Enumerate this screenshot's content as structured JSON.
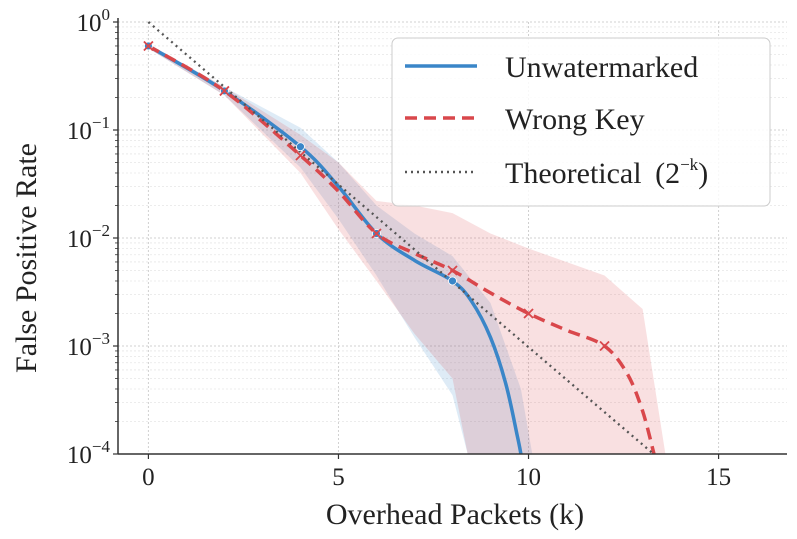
{
  "chart_data": {
    "type": "line",
    "yscale": "log",
    "xlabel": "Overhead Packets (k)",
    "ylabel": "False Positive Rate",
    "xlim": [
      -0.8,
      16.8
    ],
    "ylim": [
      0.0001,
      1
    ],
    "x_ticks": [
      0,
      5,
      10,
      15
    ],
    "y_ticks": [
      {
        "value": 1,
        "base": "10",
        "exp": "0"
      },
      {
        "value": 0.1,
        "base": "10",
        "exp": "−1"
      },
      {
        "value": 0.01,
        "base": "10",
        "exp": "−2"
      },
      {
        "value": 0.001,
        "base": "10",
        "exp": "−3"
      },
      {
        "value": 0.0001,
        "base": "10",
        "exp": "−4"
      }
    ],
    "grid": true,
    "legend_position": "top-right",
    "series": [
      {
        "name": "Unwatermarked",
        "color": "#3a86c8",
        "line_style": "solid",
        "marker": "circle",
        "markers": [
          [
            0,
            0.6
          ],
          [
            2,
            0.23
          ],
          [
            4,
            0.07
          ],
          [
            6,
            0.011
          ],
          [
            8,
            0.004
          ]
        ],
        "curve": [
          [
            0,
            0.6
          ],
          [
            2,
            0.23
          ],
          [
            4,
            0.07
          ],
          [
            5,
            0.03
          ],
          [
            6,
            0.011
          ],
          [
            7,
            0.0062
          ],
          [
            8,
            0.004
          ],
          [
            8.5,
            0.0026
          ],
          [
            9,
            0.0012
          ],
          [
            9.4,
            0.00045
          ],
          [
            9.7,
            0.00015
          ],
          [
            9.8,
            0.0001
          ]
        ],
        "band_upper": [
          [
            0,
            0.63
          ],
          [
            2,
            0.25
          ],
          [
            4,
            0.105
          ],
          [
            5,
            0.05
          ],
          [
            6,
            0.02
          ],
          [
            7,
            0.011
          ],
          [
            8,
            0.0068
          ],
          [
            9,
            0.0025
          ],
          [
            9.8,
            0.0004
          ],
          [
            10.1,
            0.0001
          ]
        ],
        "band_lower": [
          [
            0,
            0.57
          ],
          [
            2,
            0.21
          ],
          [
            4,
            0.045
          ],
          [
            5,
            0.015
          ],
          [
            6,
            0.0045
          ],
          [
            7,
            0.0012
          ],
          [
            8,
            0.00035
          ],
          [
            8.4,
            0.0001
          ]
        ]
      },
      {
        "name": "Wrong Key",
        "color": "#d9474b",
        "line_style": "dashed",
        "marker": "x",
        "markers": [
          [
            0,
            0.6
          ],
          [
            2,
            0.23
          ],
          [
            4,
            0.058
          ],
          [
            6,
            0.011
          ],
          [
            8,
            0.005
          ],
          [
            10,
            0.002
          ],
          [
            12,
            0.001
          ]
        ],
        "curve": [
          [
            0,
            0.6
          ],
          [
            2,
            0.23
          ],
          [
            4,
            0.058
          ],
          [
            5,
            0.027
          ],
          [
            6,
            0.011
          ],
          [
            7,
            0.0072
          ],
          [
            8,
            0.005
          ],
          [
            9,
            0.0031
          ],
          [
            10,
            0.002
          ],
          [
            11,
            0.0014
          ],
          [
            12,
            0.001
          ],
          [
            12.6,
            0.00055
          ],
          [
            13,
            0.00025
          ],
          [
            13.3,
            0.0001
          ]
        ],
        "band_upper": [
          [
            0,
            0.63
          ],
          [
            2,
            0.25
          ],
          [
            4,
            0.09
          ],
          [
            5,
            0.05
          ],
          [
            6,
            0.022
          ],
          [
            7,
            0.02
          ],
          [
            8,
            0.017
          ],
          [
            9,
            0.011
          ],
          [
            10,
            0.008
          ],
          [
            11,
            0.006
          ],
          [
            12,
            0.0045
          ],
          [
            13,
            0.0022
          ],
          [
            13.6,
            0.0001
          ]
        ],
        "band_lower": [
          [
            0,
            0.57
          ],
          [
            2,
            0.21
          ],
          [
            4,
            0.04
          ],
          [
            5,
            0.012
          ],
          [
            6,
            0.004
          ],
          [
            7,
            0.0013
          ],
          [
            8,
            0.0005
          ],
          [
            8.4,
            0.0001
          ]
        ]
      },
      {
        "name": "Theoretical",
        "name_math": "(2",
        "name_exp": "−k",
        "name_close": ")",
        "color": "#555555",
        "line_style": "dotted",
        "marker": "none",
        "formula": "2^-k",
        "x_range": [
          0,
          13.3
        ]
      }
    ]
  }
}
